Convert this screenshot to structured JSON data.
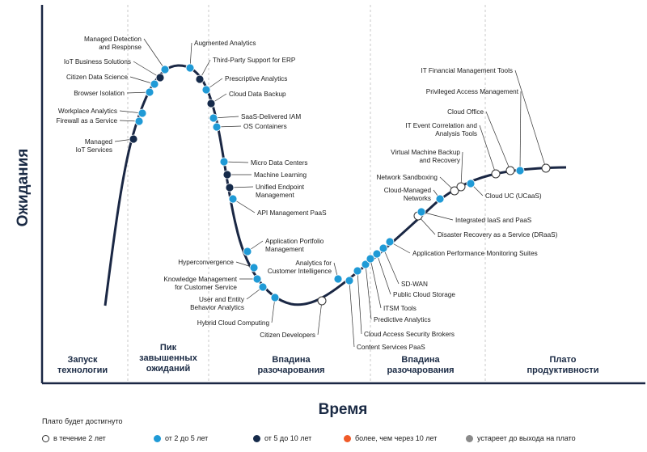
{
  "axis": {
    "y_label": "Ожидания",
    "x_label": "Время"
  },
  "phases": [
    {
      "lines": [
        "Запуск",
        "технологии"
      ]
    },
    {
      "lines": [
        "Пик",
        "завышенных",
        "ожиданий"
      ]
    },
    {
      "lines": [
        "Впадина",
        "разочарования"
      ]
    },
    {
      "lines": [
        "Впадина",
        "разочарования"
      ]
    },
    {
      "lines": [
        "Плато",
        "продуктивности"
      ]
    }
  ],
  "colors": {
    "within_2": "#ffffff",
    "2_5": "#1f9ad6",
    "5_10": "#152a4a",
    "over_10": "#f05a28",
    "obsolete": "#8a8a8a",
    "curve": "#1a2744"
  },
  "legend": {
    "title": "Плато будет достигнуто",
    "items": [
      {
        "key": "within_2",
        "label": "в течение 2 лет"
      },
      {
        "key": "2_5",
        "label": "от 2 до 5 лет"
      },
      {
        "key": "5_10",
        "label": "от 5 до 10 лет"
      },
      {
        "key": "over_10",
        "label": "более, чем через 10 лет"
      },
      {
        "key": "obsolete",
        "label": "устареет до выхода на плато"
      }
    ]
  },
  "technologies": [
    {
      "name": "Managed Detection and Response",
      "lines": [
        "Managed Detection",
        "and Response"
      ],
      "cat": "2_5"
    },
    {
      "name": "IoT Business Solutions",
      "lines": [
        "IoT Business Solutions"
      ],
      "cat": "5_10"
    },
    {
      "name": "Citizen Data Science",
      "lines": [
        "Citizen Data Science"
      ],
      "cat": "2_5"
    },
    {
      "name": "Browser Isolation",
      "lines": [
        "Browser Isolation"
      ],
      "cat": "2_5"
    },
    {
      "name": "Workplace Analytics",
      "lines": [
        "Workplace Analytics"
      ],
      "cat": "2_5"
    },
    {
      "name": "Firewall as a Service",
      "lines": [
        "Firewall as a Service"
      ],
      "cat": "2_5"
    },
    {
      "name": "Managed IoT Services",
      "lines": [
        "Managed",
        "IoT Services"
      ],
      "cat": "5_10"
    },
    {
      "name": "Augmented Analytics",
      "lines": [
        "Augmented Analytics"
      ],
      "cat": "2_5"
    },
    {
      "name": "Third-Party Support for ERP",
      "lines": [
        "Third-Party Support for ERP"
      ],
      "cat": "5_10"
    },
    {
      "name": "Prescriptive Analytics",
      "lines": [
        "Prescriptive Analytics"
      ],
      "cat": "2_5"
    },
    {
      "name": "Cloud Data Backup",
      "lines": [
        "Cloud Data Backup"
      ],
      "cat": "5_10"
    },
    {
      "name": "SaaS-Delivered IAM",
      "lines": [
        "SaaS-Delivered IAM"
      ],
      "cat": "2_5"
    },
    {
      "name": "OS Containers",
      "lines": [
        "OS Containers"
      ],
      "cat": "2_5"
    },
    {
      "name": "Micro Data Centers",
      "lines": [
        "Micro Data Centers"
      ],
      "cat": "2_5"
    },
    {
      "name": "Machine Learning",
      "lines": [
        "Machine Learning"
      ],
      "cat": "5_10"
    },
    {
      "name": "Unified Endpoint Management",
      "lines": [
        "Unified Endpoint",
        "Management"
      ],
      "cat": "5_10"
    },
    {
      "name": "API Management PaaS",
      "lines": [
        "API Management PaaS"
      ],
      "cat": "2_5"
    },
    {
      "name": "Application Portfolio Management",
      "lines": [
        "Application Portfolio",
        "Management"
      ],
      "cat": "2_5"
    },
    {
      "name": "Hyperconvergence",
      "lines": [
        "Hyperconvergence"
      ],
      "cat": "2_5"
    },
    {
      "name": "Knowledge Management for Customer Service",
      "lines": [
        "Knowledge Management",
        "for Customer Service"
      ],
      "cat": "2_5"
    },
    {
      "name": "User and Entity Behavior Analytics",
      "lines": [
        "User and Entity",
        "Behavior Analytics"
      ],
      "cat": "2_5"
    },
    {
      "name": "Hybrid Cloud Computing",
      "lines": [
        "Hybrid Cloud Computing"
      ],
      "cat": "2_5"
    },
    {
      "name": "Citizen Developers",
      "lines": [
        "Citizen Developers"
      ],
      "cat": "within_2"
    },
    {
      "name": "Analytics for Customer Intelligence",
      "lines": [
        "Analytics for",
        "Customer Intelligence"
      ],
      "cat": "2_5"
    },
    {
      "name": "Content Services PaaS",
      "lines": [
        "Content Services PaaS"
      ],
      "cat": "2_5"
    },
    {
      "name": "Cloud Access Security Brokers",
      "lines": [
        "Cloud Access Security Brokers"
      ],
      "cat": "2_5"
    },
    {
      "name": "Predictive Analytics",
      "lines": [
        "Predictive Analytics"
      ],
      "cat": "2_5"
    },
    {
      "name": "ITSM Tools",
      "lines": [
        "ITSM Tools"
      ],
      "cat": "2_5"
    },
    {
      "name": "Public Cloud Storage",
      "lines": [
        "Public Cloud Storage"
      ],
      "cat": "2_5"
    },
    {
      "name": "SD-WAN",
      "lines": [
        "SD-WAN"
      ],
      "cat": "2_5"
    },
    {
      "name": "Application Performance Monitoring Suites",
      "lines": [
        "Application Performance Monitoring Suites"
      ],
      "cat": "2_5"
    },
    {
      "name": "Disaster Recovery as a Service (DRaaS)",
      "lines": [
        "Disaster Recovery as a Service (DRaaS)"
      ],
      "cat": "within_2"
    },
    {
      "name": "Integrated IaaS and PaaS",
      "lines": [
        "Integrated IaaS and PaaS"
      ],
      "cat": "2_5"
    },
    {
      "name": "Cloud-Managed Networks",
      "lines": [
        "Cloud-Managed",
        "Networks"
      ],
      "cat": "2_5"
    },
    {
      "name": "Network Sandboxing",
      "lines": [
        "Network Sandboxing"
      ],
      "cat": "within_2"
    },
    {
      "name": "Virtual Machine Backup and Recovery",
      "lines": [
        "Virtual Machine Backup",
        "and Recovery"
      ],
      "cat": "within_2"
    },
    {
      "name": "Cloud UC (UCaaS)",
      "lines": [
        "Cloud UC (UCaaS)"
      ],
      "cat": "2_5"
    },
    {
      "name": "IT Event Correlation and Analysis Tools",
      "lines": [
        "IT Event Correlation and",
        "Analysis Tools"
      ],
      "cat": "within_2"
    },
    {
      "name": "Cloud Office",
      "lines": [
        "Cloud Office"
      ],
      "cat": "within_2"
    },
    {
      "name": "Privileged Access Management",
      "lines": [
        "Privileged Access Management"
      ],
      "cat": "2_5"
    },
    {
      "name": "IT Financial Management Tools",
      "lines": [
        "IT Financial Management Tools"
      ],
      "cat": "within_2"
    }
  ]
}
